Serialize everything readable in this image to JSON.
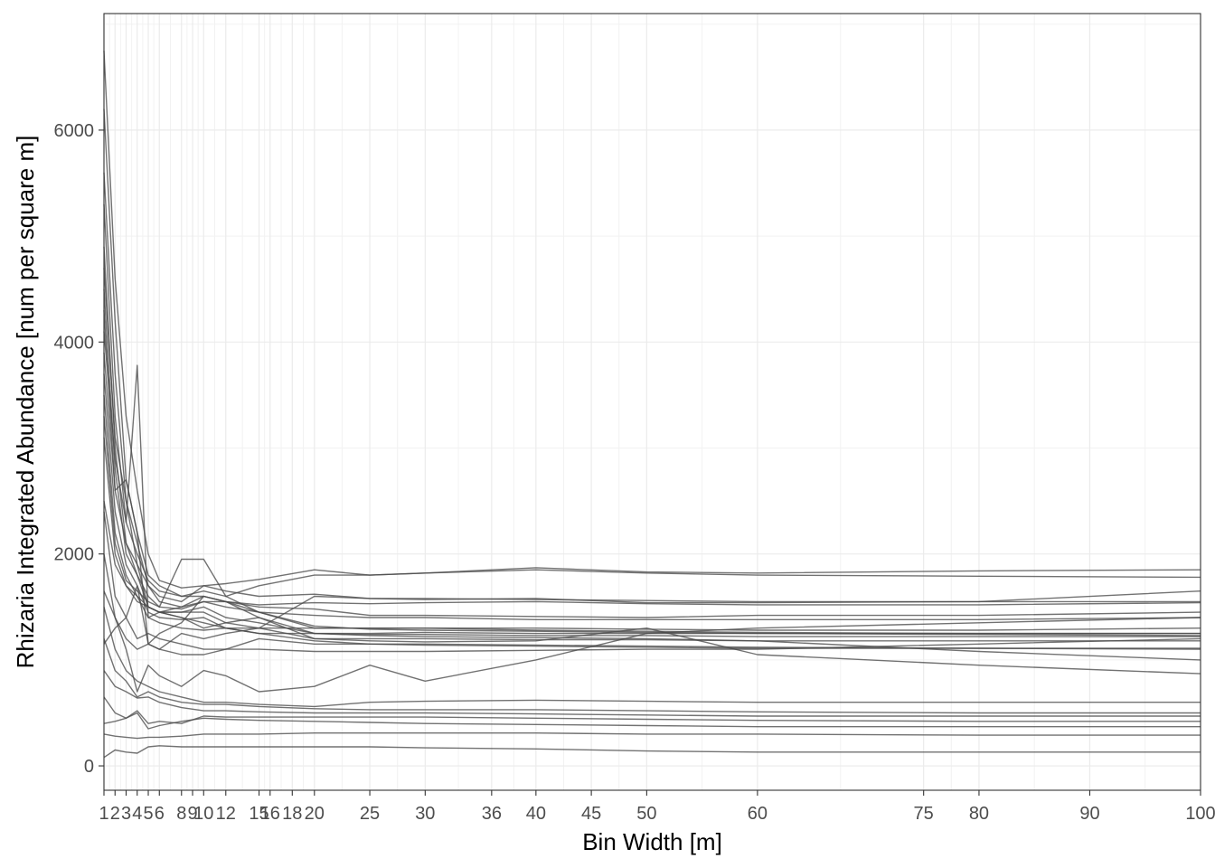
{
  "chart_data": {
    "type": "line",
    "title": "",
    "xlabel": "Bin Width [m]",
    "ylabel": "Rhizaria Integrated Abundance [num per square m]",
    "xlim": [
      1,
      100
    ],
    "ylim": [
      -230,
      7100
    ],
    "x_ticks": [
      1,
      2,
      3,
      4,
      5,
      6,
      8,
      9,
      10,
      12,
      15,
      16,
      18,
      20,
      25,
      30,
      36,
      40,
      45,
      50,
      60,
      75,
      80,
      90,
      100
    ],
    "y_ticks": [
      0,
      2000,
      4000,
      6000
    ],
    "y_minor_ticks": [
      1000,
      3000,
      5000,
      7000
    ],
    "grid": true,
    "legend": "none",
    "line_color": "#4a4a4a",
    "series": [
      {
        "x": [
          1,
          2,
          3,
          4,
          5,
          6,
          8,
          10,
          12,
          15,
          20,
          25,
          30,
          40,
          50,
          60,
          80,
          100
        ],
        "values": [
          6750,
          4600,
          3300,
          2600,
          2000,
          1750,
          1680,
          1700,
          1720,
          1760,
          1850,
          1800,
          1820,
          1870,
          1830,
          1820,
          1840,
          1850
        ]
      },
      {
        "x": [
          1,
          2,
          3,
          4,
          5,
          6,
          8,
          10,
          12,
          15,
          20,
          25,
          30,
          40,
          50,
          60,
          80,
          100
        ],
        "values": [
          6200,
          4200,
          2700,
          2200,
          1800,
          1700,
          1600,
          1650,
          1600,
          1700,
          1800,
          1800,
          1820,
          1850,
          1820,
          1800,
          1790,
          1780
        ]
      },
      {
        "x": [
          1,
          2,
          3,
          4,
          5,
          6,
          8,
          10,
          12,
          15,
          20,
          25,
          30,
          40,
          50,
          60,
          80,
          100
        ],
        "values": [
          5600,
          3700,
          2500,
          2100,
          1700,
          1600,
          1550,
          1700,
          1650,
          1600,
          1620,
          1580,
          1570,
          1580,
          1540,
          1540,
          1550,
          1650
        ]
      },
      {
        "x": [
          1,
          2,
          3,
          4,
          5,
          6,
          8,
          10,
          12,
          15,
          20,
          25,
          30,
          40,
          50,
          60,
          80,
          100
        ],
        "values": [
          5300,
          3300,
          2300,
          2000,
          1750,
          1650,
          1600,
          1600,
          1550,
          1520,
          1540,
          1530,
          1540,
          1550,
          1530,
          1520,
          1520,
          1540
        ]
      },
      {
        "x": [
          1,
          2,
          3,
          4,
          5,
          6,
          8,
          10,
          12,
          15,
          20,
          25,
          30,
          40,
          50,
          60,
          80,
          100
        ],
        "values": [
          4900,
          3000,
          2100,
          1900,
          1700,
          1550,
          1500,
          1550,
          1550,
          1500,
          1480,
          1420,
          1420,
          1410,
          1400,
          1420,
          1420,
          1450
        ]
      },
      {
        "x": [
          1,
          2,
          3,
          4,
          5,
          6,
          8,
          10,
          12,
          15,
          20,
          25,
          30,
          40,
          50,
          60,
          80,
          100
        ],
        "values": [
          4500,
          2800,
          2000,
          1800,
          1600,
          1500,
          1480,
          1550,
          1500,
          1450,
          1420,
          1400,
          1400,
          1380,
          1380,
          1380,
          1380,
          1400
        ]
      },
      {
        "x": [
          1,
          2,
          3,
          4,
          5,
          6,
          8,
          10,
          12,
          15,
          20,
          25,
          30,
          40,
          50,
          60,
          80,
          100
        ],
        "values": [
          4300,
          2600,
          2700,
          2200,
          1150,
          1250,
          1350,
          1600,
          1550,
          1450,
          1300,
          1300,
          1300,
          1300,
          1290,
          1280,
          1280,
          1300
        ]
      },
      {
        "x": [
          1,
          2,
          3,
          4,
          5,
          6,
          8,
          10,
          12,
          15,
          20,
          25,
          30,
          40,
          50,
          60,
          80,
          100
        ],
        "values": [
          4700,
          3100,
          2500,
          1900,
          1500,
          1450,
          1500,
          1600,
          1550,
          1400,
          1250,
          1250,
          1260,
          1250,
          1250,
          1250,
          1250,
          1250
        ]
      },
      {
        "x": [
          1,
          2,
          3,
          4,
          5,
          6,
          8,
          10,
          12,
          15,
          20,
          25,
          30,
          40,
          50,
          60,
          80,
          100
        ],
        "values": [
          4100,
          2900,
          2300,
          3780,
          1400,
          1450,
          1450,
          1500,
          1400,
          1350,
          1250,
          1240,
          1240,
          1230,
          1230,
          1220,
          1220,
          1220
        ]
      },
      {
        "x": [
          1,
          2,
          3,
          4,
          5,
          6,
          8,
          10,
          12,
          15,
          20,
          25,
          30,
          40,
          50,
          60,
          80,
          100
        ],
        "values": [
          3900,
          2600,
          2100,
          1800,
          1500,
          1450,
          1450,
          1450,
          1350,
          1300,
          1200,
          1200,
          1200,
          1190,
          1190,
          1180,
          1180,
          1180
        ]
      },
      {
        "x": [
          1,
          2,
          3,
          4,
          5,
          6,
          8,
          10,
          12,
          15,
          20,
          25,
          30,
          40,
          50,
          60,
          80,
          100
        ],
        "values": [
          3700,
          2400,
          1900,
          1700,
          1450,
          1400,
          1380,
          1400,
          1300,
          1250,
          1180,
          1150,
          1150,
          1140,
          1130,
          1120,
          1110,
          1100
        ]
      },
      {
        "x": [
          1,
          2,
          3,
          4,
          5,
          6,
          8,
          10,
          12,
          15,
          20,
          25,
          30,
          40,
          50,
          60,
          80,
          100
        ],
        "values": [
          3500,
          2200,
          1800,
          1600,
          1400,
          1350,
          1300,
          1280,
          1300,
          1300,
          1300,
          1300,
          1300,
          1280,
          1270,
          1260,
          1250,
          1250
        ]
      },
      {
        "x": [
          1,
          2,
          3,
          4,
          5,
          6,
          8,
          10,
          12,
          15,
          20,
          25,
          30,
          40,
          50,
          60,
          80,
          100
        ],
        "values": [
          3300,
          2100,
          1750,
          1650,
          1550,
          1500,
          1950,
          1950,
          1600,
          1450,
          1320,
          1290,
          1280,
          1270,
          1260,
          1250,
          1240,
          1230
        ]
      },
      {
        "x": [
          1,
          2,
          3,
          4,
          5,
          6,
          8,
          10,
          12,
          15,
          20,
          25,
          30,
          40,
          50,
          60,
          80,
          100
        ],
        "values": [
          3100,
          2000,
          1700,
          1550,
          1500,
          1450,
          1400,
          1350,
          1300,
          1250,
          1250,
          1230,
          1220,
          1210,
          1200,
          1180,
          1080,
          1000
        ]
      },
      {
        "x": [
          1,
          2,
          3,
          4,
          5,
          6,
          8,
          10,
          12,
          15,
          20,
          25,
          30,
          40,
          50,
          60,
          80,
          100
        ],
        "values": [
          2500,
          1900,
          1700,
          1600,
          1500,
          1450,
          1400,
          1300,
          1350,
          1400,
          1200,
          1180,
          1170,
          1180,
          1300,
          1050,
          950,
          870
        ]
      },
      {
        "x": [
          1,
          2,
          3,
          4,
          5,
          6,
          8,
          10,
          12,
          15,
          20,
          25,
          30,
          40,
          50,
          60,
          80,
          100
        ],
        "values": [
          2400,
          1600,
          1400,
          1200,
          1250,
          1200,
          1150,
          1100,
          1100,
          1200,
          1150,
          1150,
          1140,
          1130,
          1120,
          1110,
          1110,
          1110
        ]
      },
      {
        "x": [
          1,
          2,
          3,
          4,
          5,
          6,
          8,
          10,
          12,
          15,
          20,
          25,
          30,
          40,
          50,
          60,
          80,
          100
        ],
        "values": [
          1650,
          1400,
          1200,
          1100,
          1150,
          1100,
          1050,
          1050,
          1100,
          1100,
          1080,
          1080,
          1080,
          1090,
          1100,
          1100,
          1150,
          1200
        ]
      },
      {
        "x": [
          1,
          2,
          3,
          4,
          5,
          6,
          8,
          10,
          12,
          15,
          20,
          25,
          30,
          40,
          50,
          60,
          80,
          100
        ],
        "values": [
          1150,
          1300,
          1400,
          1700,
          1150,
          1100,
          1250,
          1200,
          1250,
          1300,
          1600,
          1580,
          1580,
          1570,
          1560,
          1550,
          1550,
          1550
        ]
      },
      {
        "x": [
          1,
          2,
          3,
          4,
          5,
          6,
          8,
          10,
          12,
          15,
          20,
          25,
          30,
          40,
          50,
          60,
          80,
          100
        ],
        "values": [
          2000,
          1400,
          1100,
          700,
          950,
          850,
          750,
          900,
          850,
          700,
          750,
          950,
          800,
          1000,
          1250,
          1300,
          1350,
          1400
        ]
      },
      {
        "x": [
          1,
          2,
          3,
          4,
          5,
          6,
          8,
          10,
          12,
          15,
          20,
          25,
          30,
          40,
          50,
          60,
          80,
          100
        ],
        "values": [
          1500,
          1100,
          900,
          800,
          750,
          700,
          650,
          600,
          600,
          580,
          560,
          600,
          610,
          620,
          610,
          600,
          600,
          600
        ]
      },
      {
        "x": [
          1,
          2,
          3,
          4,
          5,
          6,
          8,
          10,
          12,
          15,
          20,
          25,
          30,
          40,
          50,
          60,
          80,
          100
        ],
        "values": [
          1200,
          900,
          800,
          650,
          700,
          650,
          600,
          580,
          580,
          560,
          540,
          530,
          530,
          530,
          520,
          510,
          500,
          500
        ]
      },
      {
        "x": [
          1,
          2,
          3,
          4,
          5,
          6,
          8,
          10,
          12,
          15,
          20,
          25,
          30,
          40,
          50,
          60,
          80,
          100
        ],
        "values": [
          900,
          750,
          700,
          640,
          650,
          600,
          550,
          520,
          520,
          510,
          500,
          500,
          500,
          490,
          480,
          470,
          470,
          470
        ]
      },
      {
        "x": [
          1,
          2,
          3,
          4,
          5,
          6,
          8,
          10,
          12,
          15,
          20,
          25,
          30,
          40,
          50,
          60,
          80,
          100
        ],
        "values": [
          650,
          500,
          450,
          520,
          400,
          420,
          400,
          470,
          460,
          460,
          460,
          460,
          460,
          450,
          440,
          430,
          420,
          420
        ]
      },
      {
        "x": [
          1,
          2,
          3,
          4,
          5,
          6,
          8,
          10,
          12,
          15,
          20,
          25,
          30,
          40,
          50,
          60,
          80,
          100
        ],
        "values": [
          400,
          420,
          450,
          500,
          350,
          380,
          420,
          450,
          440,
          430,
          420,
          410,
          400,
          390,
          380,
          370,
          370,
          370
        ]
      },
      {
        "x": [
          1,
          2,
          3,
          4,
          5,
          6,
          8,
          10,
          12,
          15,
          20,
          25,
          30,
          40,
          50,
          60,
          80,
          100
        ],
        "values": [
          300,
          280,
          270,
          260,
          270,
          270,
          280,
          300,
          300,
          300,
          310,
          310,
          310,
          310,
          300,
          300,
          290,
          290
        ]
      },
      {
        "x": [
          1,
          2,
          3,
          4,
          5,
          6,
          8,
          10,
          12,
          15,
          20,
          25,
          30,
          40,
          50,
          60,
          80,
          100
        ],
        "values": [
          80,
          150,
          130,
          120,
          180,
          190,
          180,
          180,
          180,
          180,
          180,
          180,
          170,
          160,
          140,
          130,
          130,
          130
        ]
      }
    ]
  }
}
